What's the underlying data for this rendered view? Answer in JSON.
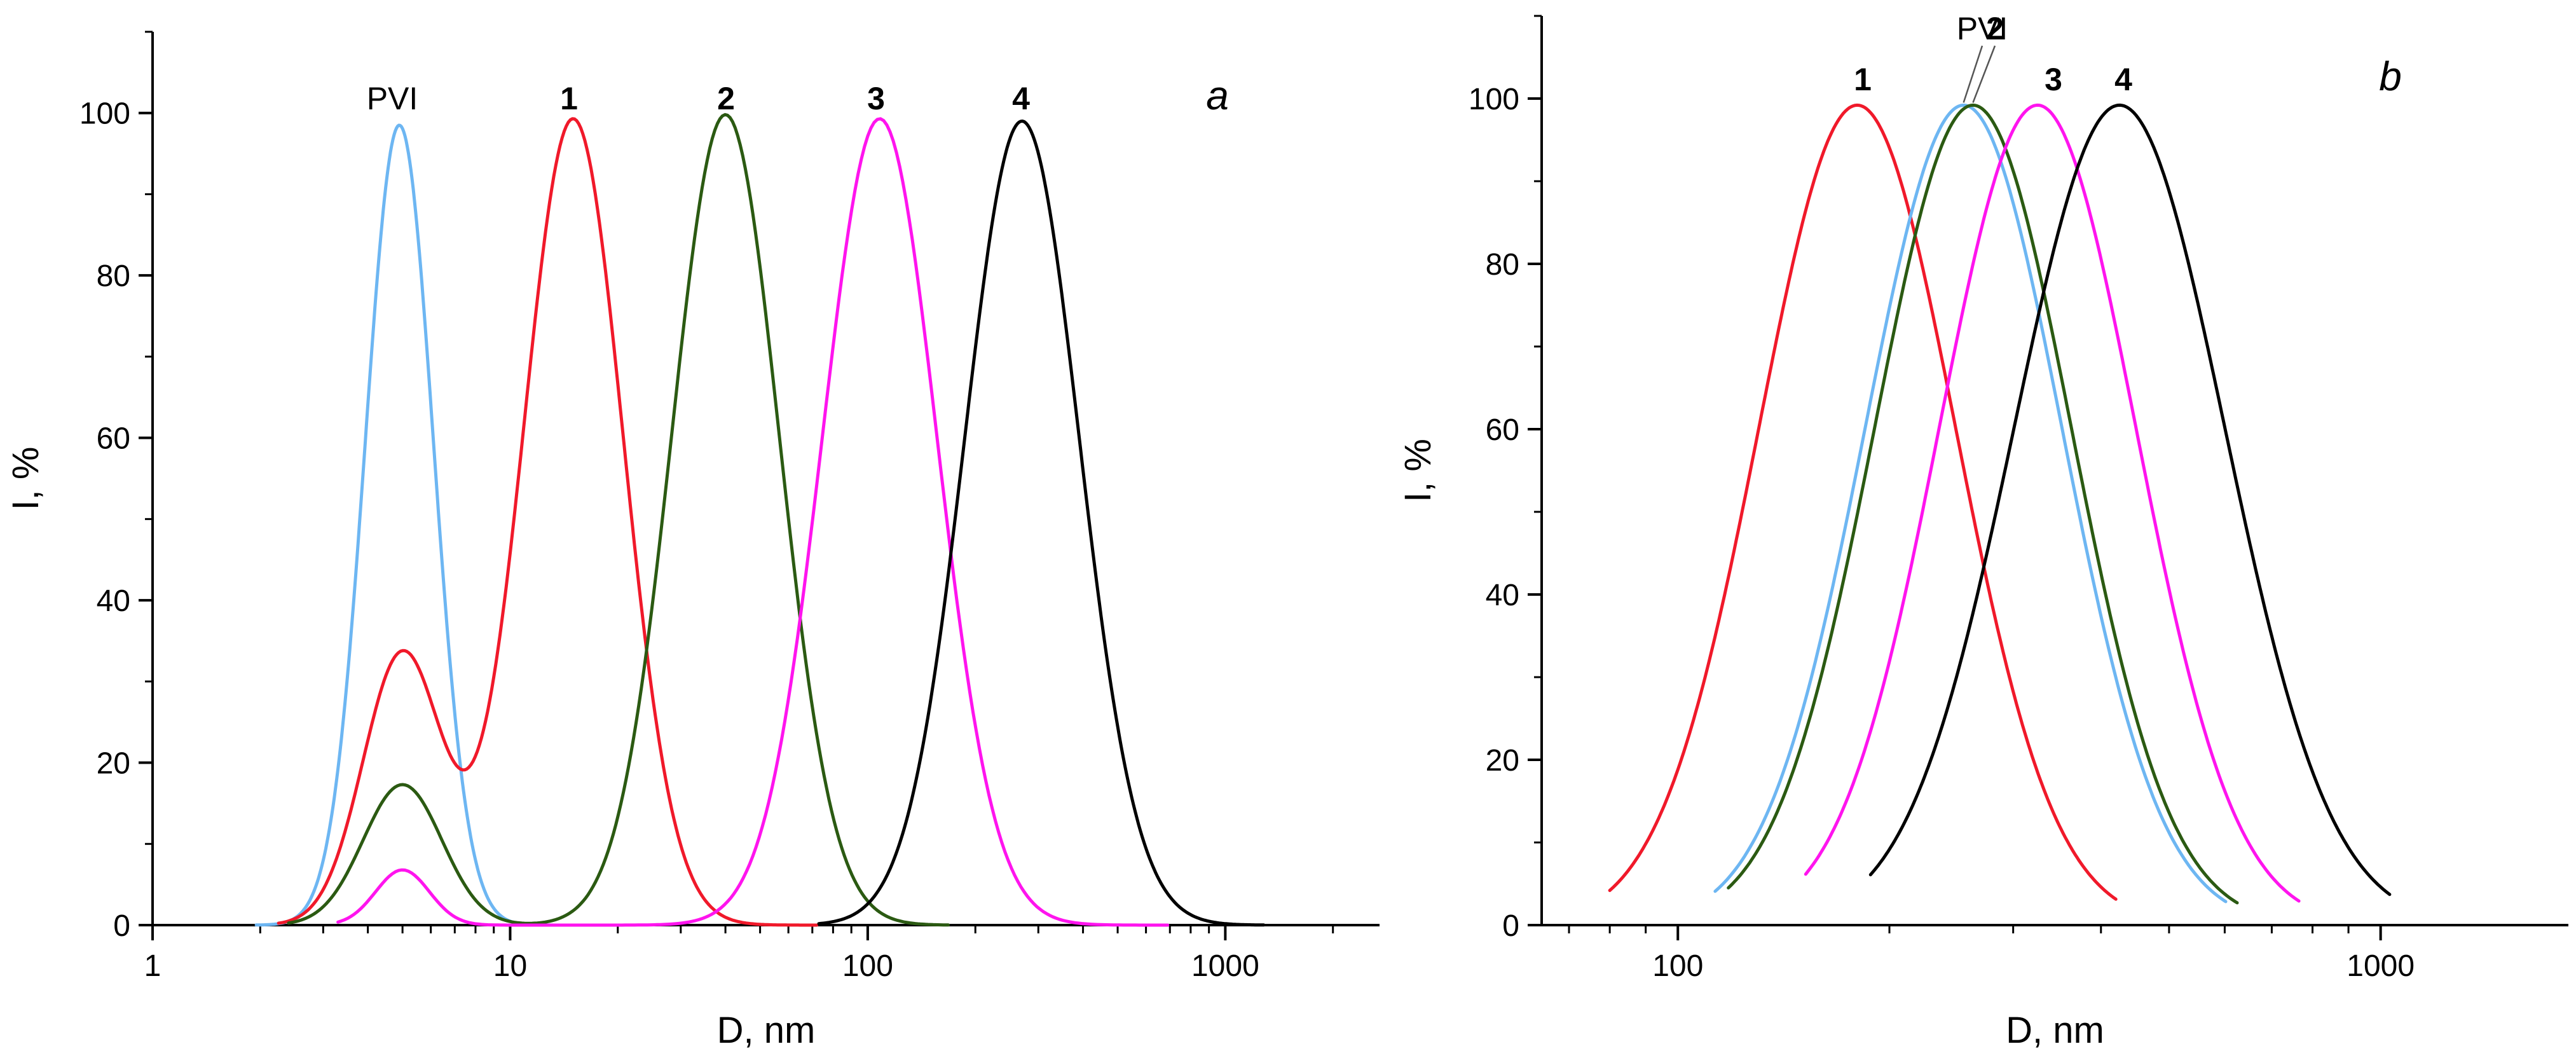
{
  "chart_data": [
    {
      "panel": "a",
      "type": "line",
      "panel_label": "a",
      "xlabel": "D, nm",
      "ylabel": "I, %",
      "x_scale": "log",
      "xlim": [
        1,
        2700
      ],
      "ylim": [
        0,
        110
      ],
      "x_ticks": [
        1,
        10,
        100,
        1000
      ],
      "x_tick_labels": [
        "1",
        "10",
        "100",
        "1000"
      ],
      "y_ticks": [
        0,
        20,
        40,
        60,
        80,
        100
      ],
      "y_tick_labels": [
        "0",
        "20",
        "40",
        "60",
        "80",
        "100"
      ],
      "series": [
        {
          "name": "PVI",
          "label": "PVI",
          "label_bold": false,
          "color": "#6db6f2",
          "peaks": [
            {
              "center": 4.9,
              "height": 98.5,
              "sigma": 0.095
            }
          ],
          "x_range": [
            1.95,
            14.5
          ]
        },
        {
          "name": "1",
          "label": "1",
          "label_bold": true,
          "color": "#f0192a",
          "peaks": [
            {
              "center": 5.0,
              "height": 33.5,
              "sigma": 0.11
            },
            {
              "center": 15.0,
              "height": 99.3,
              "sigma": 0.14
            }
          ],
          "x_range": [
            2.25,
            72
          ]
        },
        {
          "name": "2",
          "label": "2",
          "label_bold": true,
          "color": "#2b5a12",
          "peaks": [
            {
              "center": 5.0,
              "height": 17.3,
              "sigma": 0.11
            },
            {
              "center": 40.0,
              "height": 99.8,
              "sigma": 0.15
            }
          ],
          "x_range": [
            2.4,
            168
          ]
        },
        {
          "name": "3",
          "label": "3",
          "label_bold": true,
          "color": "#ff14ee",
          "peaks": [
            {
              "center": 5.0,
              "height": 6.8,
              "sigma": 0.075
            },
            {
              "center": 108.0,
              "height": 99.3,
              "sigma": 0.16
            }
          ],
          "x_range": [
            3.3,
            690
          ]
        },
        {
          "name": "4",
          "label": "4",
          "label_bold": true,
          "color": "#000000",
          "peaks": [
            {
              "center": 270.0,
              "height": 99.0,
              "sigma": 0.16
            }
          ],
          "x_range": [
            73,
            1280
          ]
        }
      ]
    },
    {
      "panel": "b",
      "type": "line",
      "panel_label": "b",
      "xlabel": "D, nm",
      "ylabel": "I, %",
      "x_scale": "log",
      "xlim": [
        64,
        1850
      ],
      "ylim": [
        0,
        110
      ],
      "x_ticks": [
        100,
        1000
      ],
      "x_tick_labels": [
        "100",
        "1000"
      ],
      "y_ticks": [
        0,
        20,
        40,
        60,
        80,
        100
      ],
      "y_tick_labels": [
        "0",
        "20",
        "40",
        "60",
        "80",
        "100"
      ],
      "series": [
        {
          "name": "1",
          "label": "1",
          "label_bold": true,
          "color": "#f0192a",
          "peaks": [
            {
              "center": 180.0,
              "height": 99.2,
              "sigma": 0.14
            }
          ],
          "x_range": [
            80,
            420
          ]
        },
        {
          "name": "PVI",
          "label": "PVI",
          "label_bold": false,
          "color": "#6db6f2",
          "peaks": [
            {
              "center": 255.0,
              "height": 99.2,
              "sigma": 0.14
            }
          ],
          "x_range": [
            113,
            602
          ]
        },
        {
          "name": "2",
          "label": "2",
          "label_bold": true,
          "color": "#2b5a12",
          "peaks": [
            {
              "center": 263.0,
              "height": 99.2,
              "sigma": 0.14
            }
          ],
          "x_range": [
            118,
            625
          ]
        },
        {
          "name": "3",
          "label": "3",
          "label_bold": true,
          "color": "#ff14ee",
          "peaks": [
            {
              "center": 325.0,
              "height": 99.2,
              "sigma": 0.14
            }
          ],
          "x_range": [
            152,
            765
          ]
        },
        {
          "name": "4",
          "label": "4",
          "label_bold": true,
          "color": "#000000",
          "peaks": [
            {
              "center": 425.0,
              "height": 99.2,
              "sigma": 0.15
            }
          ],
          "x_range": [
            188,
            1030
          ]
        }
      ]
    }
  ]
}
